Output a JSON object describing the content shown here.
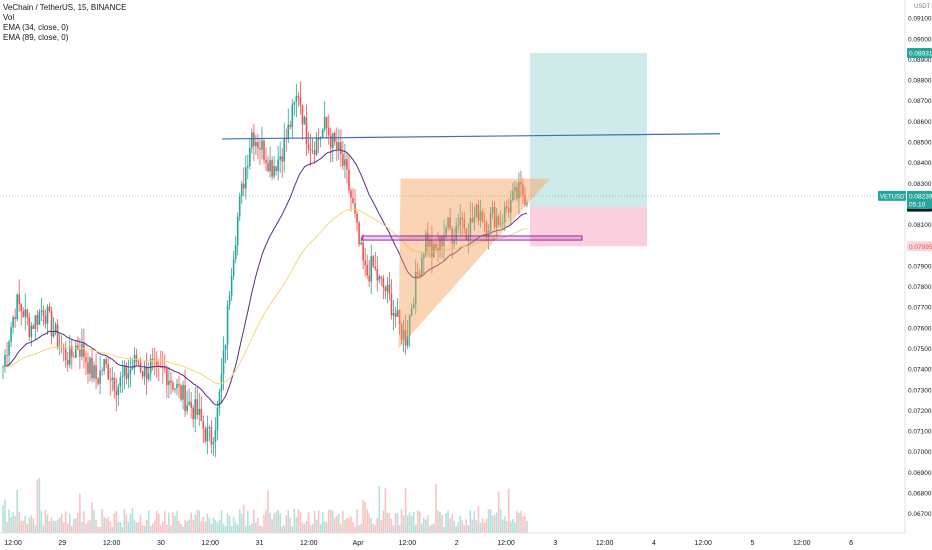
{
  "legend": {
    "title": "VeChain / TetherUS, 15, BINANCE",
    "vol": "Vol",
    "ema34": "EMA (34, close, 0)",
    "ema89": "EMA (89, close, 0)"
  },
  "colors": {
    "up": "#26a69a",
    "down": "#ef5350",
    "ema34": "#5b2c83",
    "ema89": "#f7d774",
    "trendline": "#3d72b8",
    "triangle": "#f7a25c",
    "rect_purple": "#9c27b0",
    "tp_zone": "#26a69a",
    "sl_zone": "#f06292"
  },
  "chart_data": {
    "type": "candlestick",
    "symbol": "VETUSDT",
    "currency_label": "USDT",
    "ylim": [
      0.0665,
      0.0912
    ],
    "y_ticks": [
      "0.09100",
      "0.09000",
      "0.08900",
      "0.08800",
      "0.08700",
      "0.08600",
      "0.08500",
      "0.08400",
      "0.08300",
      "0.08200",
      "0.08100",
      "0.08000",
      "0.07900",
      "0.07800",
      "0.07700",
      "0.07600",
      "0.07500",
      "0.07400",
      "0.07300",
      "0.07200",
      "0.07100",
      "0.07000",
      "0.06900",
      "0.06800",
      "0.06700"
    ],
    "x_ticks": [
      "12:00",
      "29",
      "12:00",
      "30",
      "12:00",
      "31",
      "12:00",
      "Apr",
      "12:00",
      "2",
      "12:00",
      "3",
      "12:00",
      "4",
      "12:00",
      "5",
      "12:00",
      "6"
    ],
    "price_labels": {
      "target": "0.08931",
      "current": "0.08239",
      "current_symbol": "VETUSDT",
      "countdown": "05:10",
      "entry": "0.08187",
      "stop": "0.07995"
    },
    "drawings": {
      "resistance_line": [
        0.08515,
        0.0854
      ],
      "triangle_top": 0.0832,
      "triangle_apex_low": 0.07505,
      "support_band": [
        0.08025,
        0.08045
      ]
    },
    "candles_estimate": [
      0.0741,
      0.0758,
      0.0772,
      0.0768,
      0.076,
      0.0765,
      0.077,
      0.0762,
      0.0755,
      0.0748,
      0.0745,
      0.0752,
      0.0748,
      0.074,
      0.0735,
      0.0742,
      0.0738,
      0.0732,
      0.0736,
      0.074,
      0.0745,
      0.0738,
      0.0742,
      0.0736,
      0.074,
      0.0735,
      0.073,
      0.0726,
      0.0722,
      0.0718,
      0.071,
      0.0706,
      0.072,
      0.075,
      0.079,
      0.0815,
      0.0835,
      0.0855,
      0.085,
      0.0845,
      0.0838,
      0.0842,
      0.085,
      0.0862,
      0.0875,
      0.0855,
      0.0848,
      0.0852,
      0.0858,
      0.085,
      0.0845,
      0.0835,
      0.082,
      0.08,
      0.0785,
      0.079,
      0.0782,
      0.0778,
      0.077,
      0.076,
      0.0755,
      0.0775,
      0.079,
      0.0805,
      0.0795,
      0.08,
      0.081,
      0.0805,
      0.0815,
      0.0808,
      0.0812,
      0.0818,
      0.081,
      0.0815,
      0.0812,
      0.0818,
      0.0822,
      0.0826,
      0.0824
    ]
  }
}
